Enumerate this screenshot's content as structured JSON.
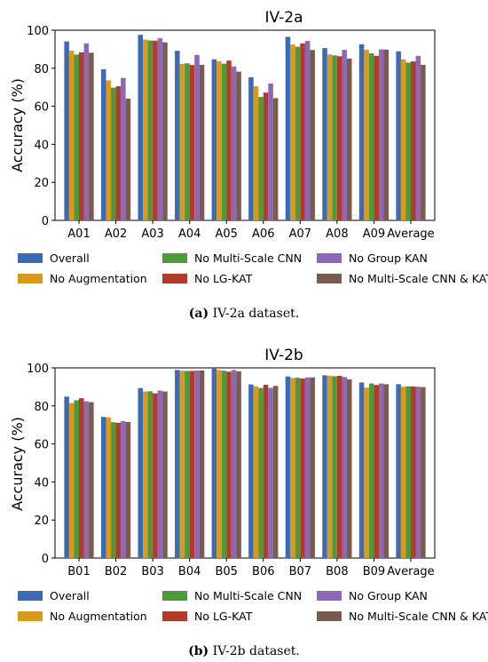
{
  "colors": {
    "Overall": "#3b6bb5",
    "No Augmentation": "#d99a1c",
    "No Multi-Scale CNN": "#4e9a3a",
    "No LG-KAT": "#b23b2a",
    "No Group KAN": "#8e67b8",
    "No Multi-Scale CNN & KAT": "#7a5c4e"
  },
  "chart_data": [
    {
      "type": "bar",
      "title": "IV-2a",
      "xlabel": "",
      "ylabel": "Accuracy (%)",
      "ylim": [
        0,
        100
      ],
      "yticks": [
        0,
        20,
        40,
        60,
        80,
        100
      ],
      "legend": "below",
      "categories": [
        "A01",
        "A02",
        "A03",
        "A04",
        "A05",
        "A06",
        "A07",
        "A08",
        "A09",
        "Average"
      ],
      "series": [
        {
          "name": "Overall",
          "values": [
            94.1,
            79.5,
            97.6,
            89.2,
            84.7,
            75.3,
            96.5,
            90.6,
            92.6,
            88.9
          ]
        },
        {
          "name": "No Augmentation",
          "values": [
            89.2,
            73.6,
            95.1,
            82.3,
            83.7,
            70.5,
            92.5,
            87.3,
            89.7,
            84.7
          ]
        },
        {
          "name": "No Multi-Scale CNN",
          "values": [
            87.2,
            69.8,
            94.6,
            82.6,
            82.4,
            64.9,
            91.3,
            86.8,
            87.8,
            83.0
          ]
        },
        {
          "name": "No LG-KAT",
          "values": [
            88.4,
            70.5,
            94.5,
            81.7,
            84.0,
            67.2,
            93.1,
            86.3,
            86.5,
            83.6
          ]
        },
        {
          "name": "No Group KAN",
          "values": [
            93.1,
            74.9,
            95.8,
            87.0,
            80.9,
            72.0,
            94.4,
            89.7,
            89.9,
            86.5
          ]
        },
        {
          "name": "No Multi-Scale CNN & KAT",
          "values": [
            88.2,
            64.0,
            93.6,
            81.8,
            78.2,
            64.3,
            89.6,
            85.1,
            89.8,
            81.8
          ]
        }
      ]
    },
    {
      "type": "bar",
      "title": "IV-2b",
      "xlabel": "",
      "ylabel": "Accuracy (%)",
      "ylim": [
        0,
        100
      ],
      "yticks": [
        0,
        20,
        40,
        60,
        80,
        100
      ],
      "legend": "below",
      "categories": [
        "B01",
        "B02",
        "B03",
        "B04",
        "B05",
        "B06",
        "B07",
        "B08",
        "B09",
        "Average"
      ],
      "series": [
        {
          "name": "Overall",
          "values": [
            84.9,
            74.2,
            89.4,
            98.9,
            99.6,
            91.3,
            95.5,
            96.1,
            92.3,
            91.4
          ]
        },
        {
          "name": "No Augmentation",
          "values": [
            81.5,
            74.0,
            87.6,
            98.5,
            98.9,
            90.3,
            94.7,
            95.9,
            89.6,
            90.1
          ]
        },
        {
          "name": "No Multi-Scale CNN",
          "values": [
            83.0,
            71.4,
            87.7,
            98.4,
            98.5,
            89.4,
            94.8,
            95.6,
            91.8,
            90.3
          ]
        },
        {
          "name": "No LG-KAT",
          "values": [
            84.1,
            71.1,
            86.6,
            98.4,
            98.0,
            91.1,
            94.4,
            95.8,
            91.0,
            90.2
          ]
        },
        {
          "name": "No Group KAN",
          "values": [
            82.4,
            72.0,
            88.1,
            98.6,
            98.9,
            89.5,
            95.0,
            95.2,
            91.8,
            90.1
          ]
        },
        {
          "name": "No Multi-Scale CNN & KAT",
          "values": [
            82.0,
            71.5,
            87.6,
            98.6,
            98.2,
            90.5,
            95.0,
            94.0,
            91.4,
            89.9
          ]
        }
      ]
    }
  ],
  "captions": [
    {
      "label": "(a)",
      "text": " IV-2a dataset."
    },
    {
      "label": "(b)",
      "text": " IV-2b dataset."
    }
  ]
}
